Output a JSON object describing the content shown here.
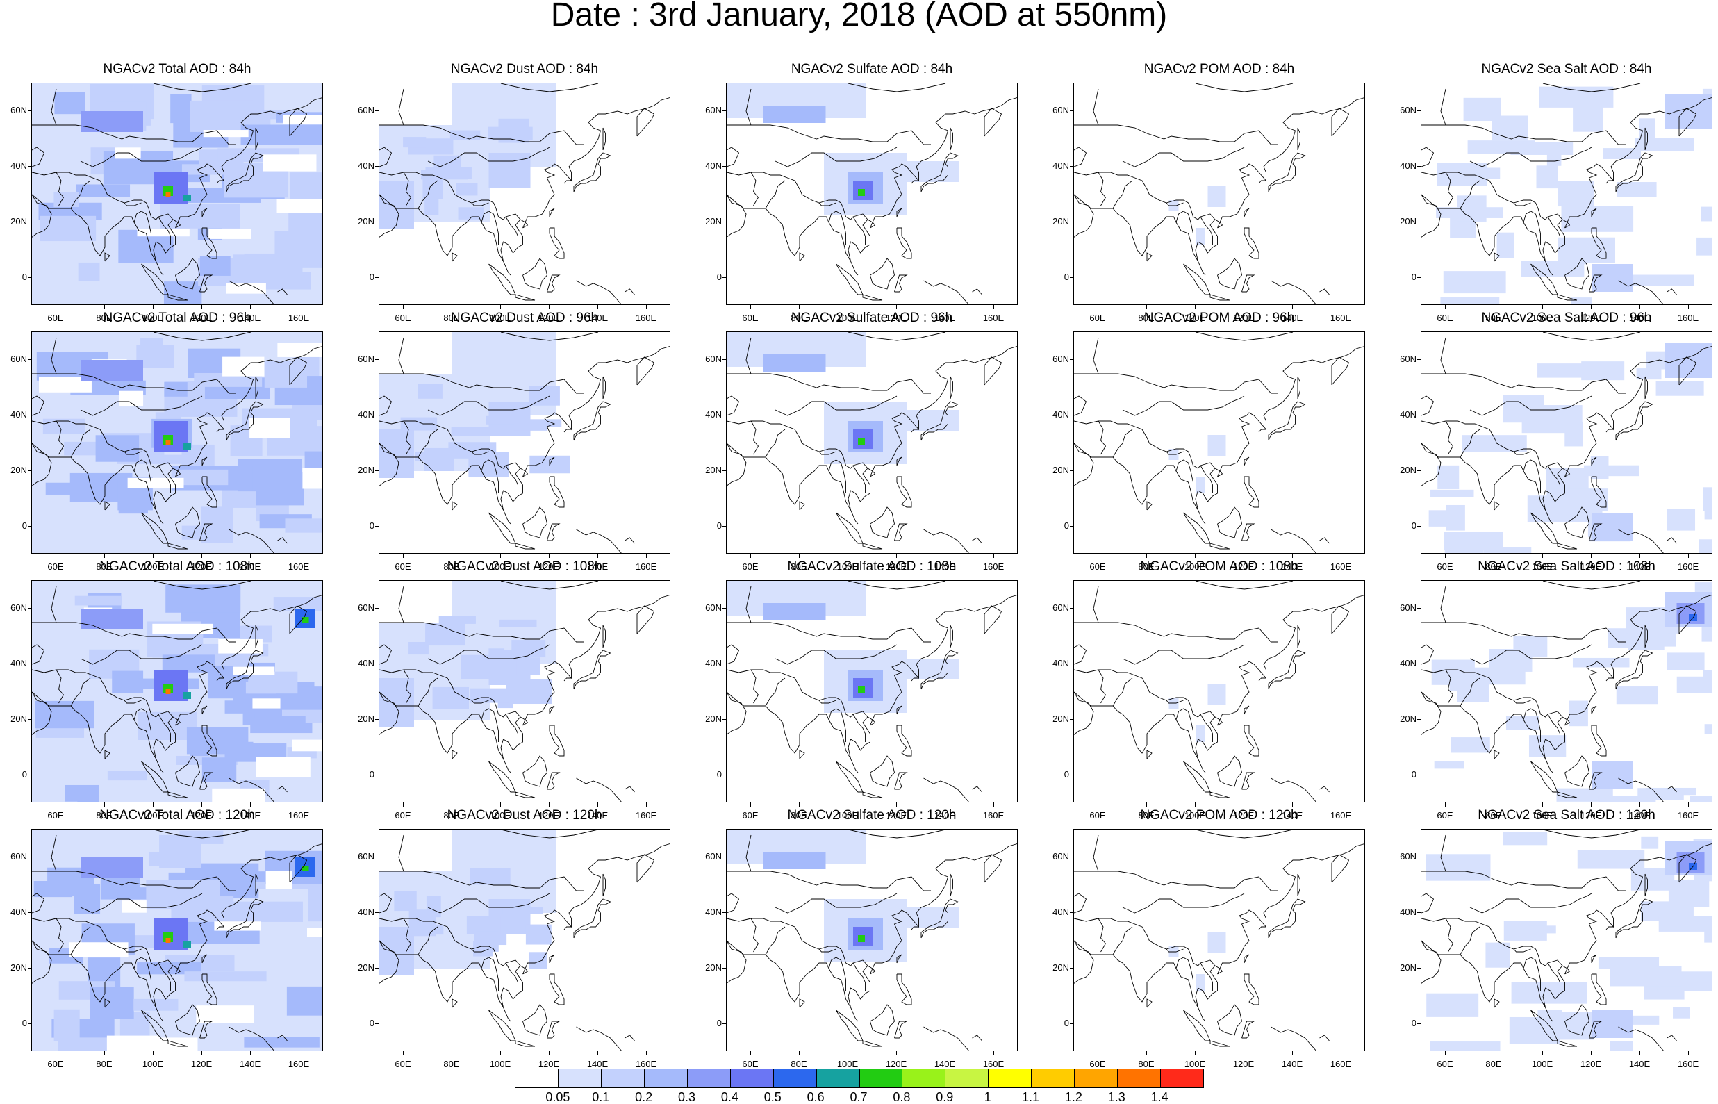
{
  "title": "Date : 3rd January, 2018 (AOD at 550nm)",
  "panels": [
    [
      "NGACv2 Total AOD : 84h",
      "NGACv2 Dust AOD : 84h",
      "NGACv2 Sulfate AOD : 84h",
      "NGACv2 POM AOD : 84h",
      "NGACv2 Sea Salt AOD : 84h"
    ],
    [
      "NGACv2 Total AOD : 96h",
      "NGACv2 Dust AOD : 96h",
      "NGACv2 Sulfate AOD : 96h",
      "NGACv2 POM AOD : 96h",
      "NGACv2 Sea Salt AOD : 96h"
    ],
    [
      "NGACv2 Total AOD : 108h",
      "NGACv2 Dust AOD : 108h",
      "NGACv2 Sulfate AOD : 108h",
      "NGACv2 POM AOD : 108h",
      "NGACv2 Sea Salt AOD : 108h"
    ],
    [
      "NGACv2 Total AOD : 120h",
      "NGACv2 Dust AOD : 120h",
      "NGACv2 Sulfate AOD : 120h",
      "NGACv2 POM AOD : 120h",
      "NGACv2 Sea Salt  AOD : 120h"
    ]
  ],
  "axes": {
    "lat_labels": [
      "60N",
      "40N",
      "20N",
      "0"
    ],
    "lon_labels": [
      "60E",
      "80E",
      "100E",
      "120E",
      "140E",
      "160E"
    ]
  },
  "colorbar": {
    "colors": [
      "#ffffff",
      "#d7e1fd",
      "#c3d1fd",
      "#a5bafb",
      "#8c9cf8",
      "#6b76f4",
      "#2c68ee",
      "#16a2a0",
      "#22cc12",
      "#99f21a",
      "#c8f542",
      "#ffff00",
      "#ffcc00",
      "#ffa500",
      "#ff7300",
      "#ff2a1a"
    ],
    "labels": [
      "0.05",
      "0.1",
      "0.2",
      "0.3",
      "0.4",
      "0.5",
      "0.6",
      "0.7",
      "0.8",
      "0.9",
      "1",
      "1.1",
      "1.2",
      "1.3",
      "1.4"
    ]
  }
}
